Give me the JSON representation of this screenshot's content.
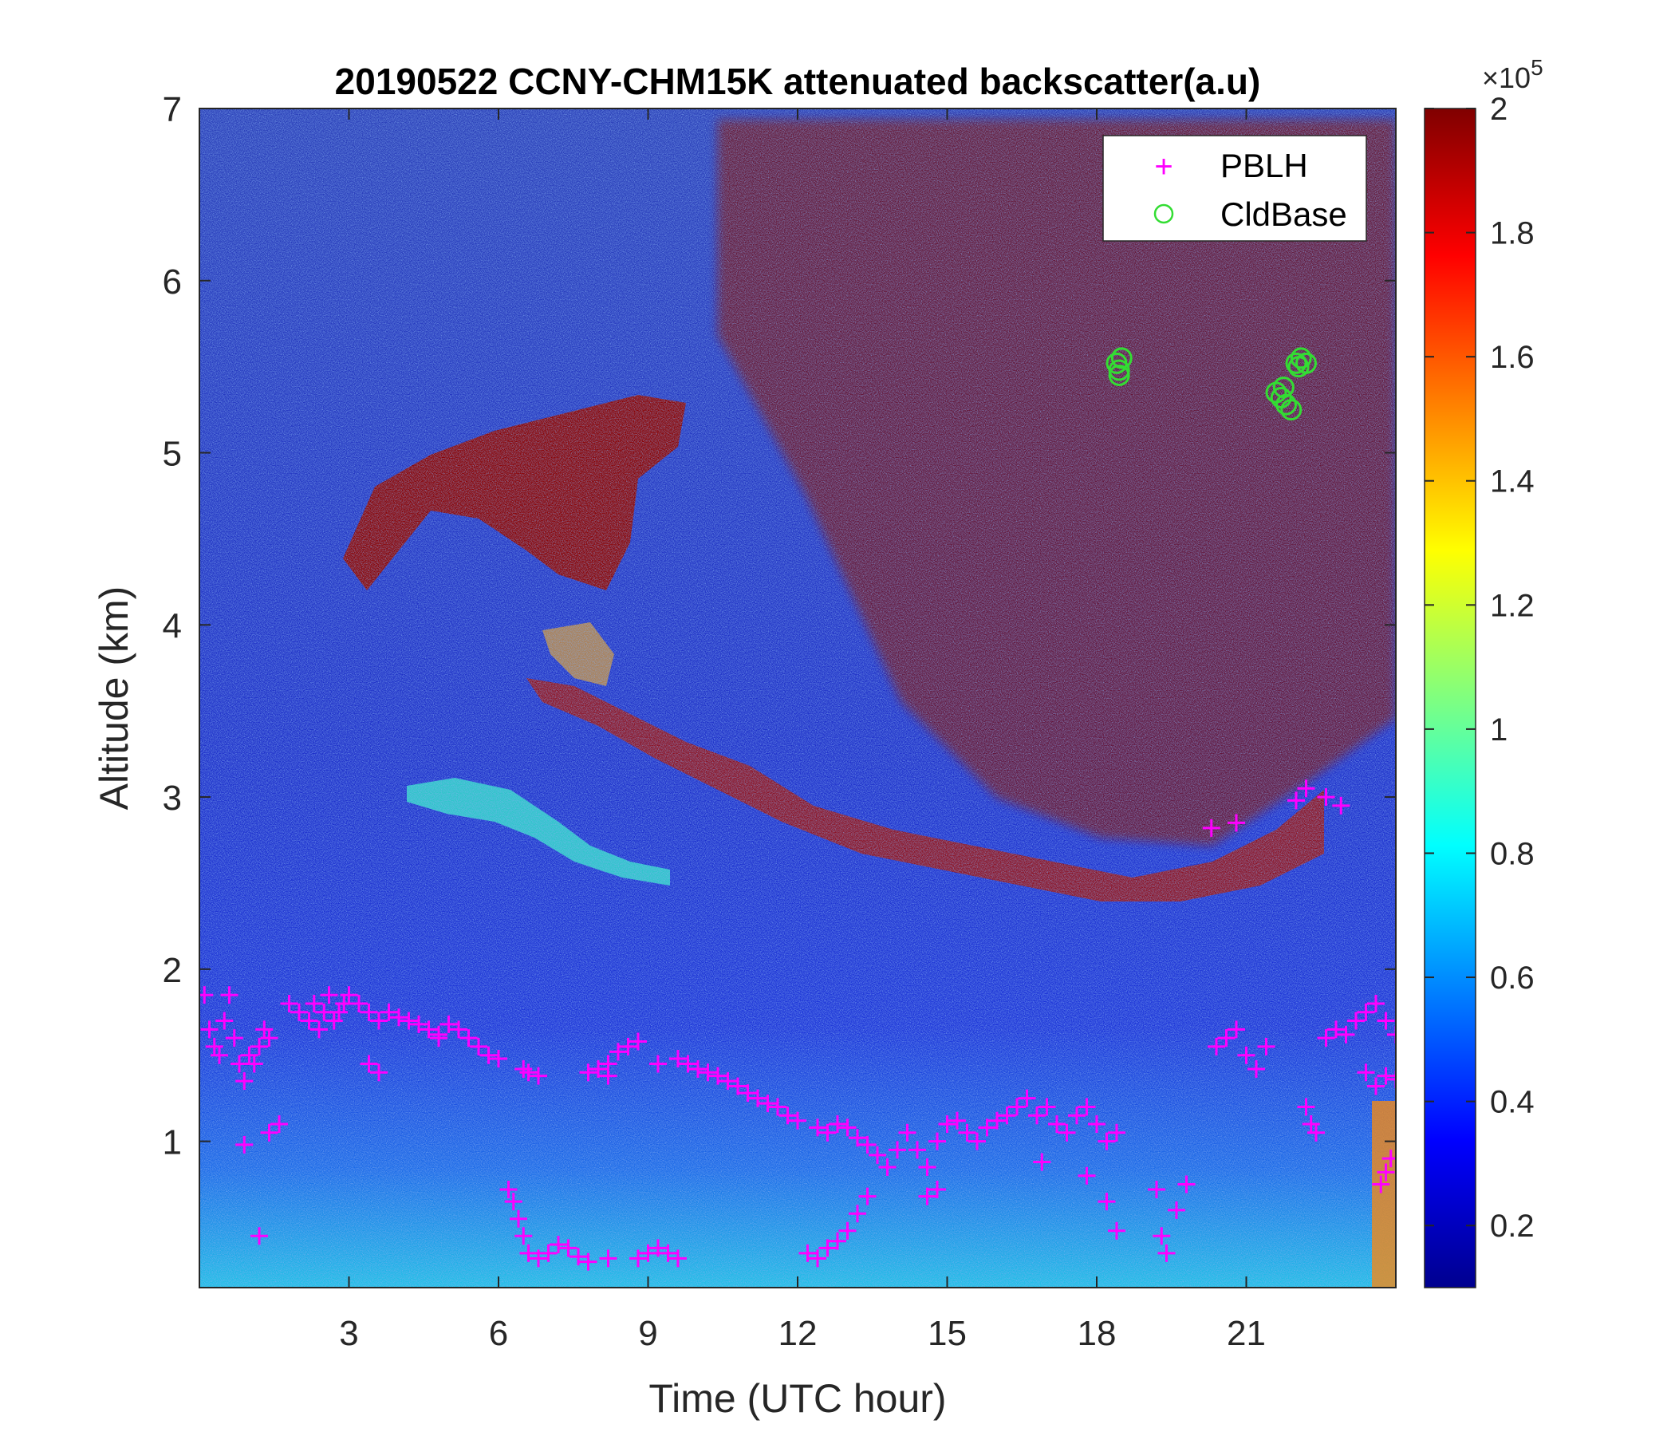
{
  "chart_data": {
    "type": "heatmap",
    "title": "20190522 CCNY-CHM15K attenuated backscatter(a.u)",
    "xlabel": "Time (UTC hour)",
    "ylabel": "Altitude (km)",
    "xlim": [
      0,
      24
    ],
    "ylim": [
      0.15,
      7
    ],
    "xticks": [
      "3",
      "6",
      "9",
      "12",
      "15",
      "18",
      "21"
    ],
    "yticks": [
      "1",
      "2",
      "3",
      "4",
      "5",
      "6",
      "7"
    ],
    "colorbar": {
      "range": [
        0.1,
        2.0
      ],
      "exponent_label": "×10",
      "exponent": "5",
      "ticks": [
        "0.2",
        "0.4",
        "0.6",
        "0.8",
        "1",
        "1.2",
        "1.4",
        "1.6",
        "1.8",
        "2"
      ],
      "colormap": "jet"
    },
    "legend": {
      "placement": "top-right",
      "entries": [
        {
          "label": "PBLH",
          "marker": "plus",
          "color": "#ff00ff"
        },
        {
          "label": "CldBase",
          "marker": "circle",
          "color": "#33dd33"
        }
      ]
    },
    "series": [
      {
        "name": "PBLH",
        "marker": "plus",
        "color": "#ff00ff",
        "points": [
          [
            0.1,
            1.85
          ],
          [
            0.2,
            1.65
          ],
          [
            0.3,
            1.55
          ],
          [
            0.4,
            1.5
          ],
          [
            0.5,
            1.7
          ],
          [
            0.6,
            1.85
          ],
          [
            0.7,
            1.6
          ],
          [
            0.8,
            1.45
          ],
          [
            0.9,
            1.35
          ],
          [
            1.0,
            1.5
          ],
          [
            1.1,
            1.45
          ],
          [
            1.2,
            1.55
          ],
          [
            1.3,
            1.65
          ],
          [
            1.4,
            1.6
          ],
          [
            0.9,
            0.98
          ],
          [
            1.2,
            0.45
          ],
          [
            1.4,
            1.05
          ],
          [
            1.6,
            1.1
          ],
          [
            1.8,
            1.8
          ],
          [
            2.0,
            1.75
          ],
          [
            2.2,
            1.7
          ],
          [
            2.3,
            1.8
          ],
          [
            2.4,
            1.65
          ],
          [
            2.5,
            1.75
          ],
          [
            2.6,
            1.85
          ],
          [
            2.7,
            1.7
          ],
          [
            2.8,
            1.75
          ],
          [
            2.9,
            1.8
          ],
          [
            3.0,
            1.85
          ],
          [
            3.2,
            1.8
          ],
          [
            3.4,
            1.75
          ],
          [
            3.6,
            1.7
          ],
          [
            3.8,
            1.75
          ],
          [
            4.0,
            1.72
          ],
          [
            4.2,
            1.7
          ],
          [
            4.4,
            1.68
          ],
          [
            4.6,
            1.65
          ],
          [
            4.8,
            1.62
          ],
          [
            5.0,
            1.68
          ],
          [
            5.2,
            1.65
          ],
          [
            5.4,
            1.6
          ],
          [
            5.6,
            1.55
          ],
          [
            5.8,
            1.5
          ],
          [
            6.0,
            1.48
          ],
          [
            3.4,
            1.45
          ],
          [
            3.6,
            1.4
          ],
          [
            4.8,
            1.6
          ],
          [
            6.5,
            1.42
          ],
          [
            6.6,
            1.4
          ],
          [
            6.8,
            1.38
          ],
          [
            6.2,
            0.72
          ],
          [
            6.3,
            0.65
          ],
          [
            6.4,
            0.55
          ],
          [
            6.5,
            0.45
          ],
          [
            6.6,
            0.35
          ],
          [
            6.8,
            0.32
          ],
          [
            7.0,
            0.35
          ],
          [
            7.2,
            0.4
          ],
          [
            7.4,
            0.38
          ],
          [
            7.6,
            0.33
          ],
          [
            7.8,
            0.3
          ],
          [
            8.2,
            0.32
          ],
          [
            8.8,
            0.32
          ],
          [
            9.0,
            0.35
          ],
          [
            9.2,
            0.38
          ],
          [
            9.4,
            0.35
          ],
          [
            9.6,
            0.32
          ],
          [
            7.8,
            1.4
          ],
          [
            8.0,
            1.42
          ],
          [
            8.2,
            1.45
          ],
          [
            8.4,
            1.52
          ],
          [
            8.6,
            1.55
          ],
          [
            8.8,
            1.58
          ],
          [
            8.2,
            1.38
          ],
          [
            9.2,
            1.45
          ],
          [
            9.6,
            1.48
          ],
          [
            9.8,
            1.45
          ],
          [
            10.0,
            1.42
          ],
          [
            10.2,
            1.4
          ],
          [
            10.4,
            1.38
          ],
          [
            10.6,
            1.35
          ],
          [
            10.8,
            1.32
          ],
          [
            11.0,
            1.28
          ],
          [
            11.2,
            1.25
          ],
          [
            11.4,
            1.22
          ],
          [
            11.6,
            1.2
          ],
          [
            11.8,
            1.15
          ],
          [
            12.0,
            1.12
          ],
          [
            12.2,
            0.35
          ],
          [
            12.4,
            0.32
          ],
          [
            12.6,
            0.38
          ],
          [
            12.8,
            0.42
          ],
          [
            13.0,
            0.48
          ],
          [
            13.2,
            0.58
          ],
          [
            13.4,
            0.68
          ],
          [
            12.4,
            1.08
          ],
          [
            12.6,
            1.05
          ],
          [
            12.8,
            1.1
          ],
          [
            13.0,
            1.08
          ],
          [
            13.2,
            1.02
          ],
          [
            13.4,
            0.98
          ],
          [
            13.6,
            0.92
          ],
          [
            13.8,
            0.85
          ],
          [
            14.0,
            0.95
          ],
          [
            14.2,
            1.05
          ],
          [
            14.4,
            0.95
          ],
          [
            14.6,
            0.85
          ],
          [
            14.8,
            1.0
          ],
          [
            15.0,
            1.1
          ],
          [
            15.2,
            1.12
          ],
          [
            15.4,
            1.05
          ],
          [
            15.6,
            1.0
          ],
          [
            15.8,
            1.08
          ],
          [
            16.0,
            1.12
          ],
          [
            16.2,
            1.15
          ],
          [
            16.4,
            1.2
          ],
          [
            16.6,
            1.25
          ],
          [
            16.8,
            1.15
          ],
          [
            17.0,
            1.2
          ],
          [
            17.2,
            1.1
          ],
          [
            17.4,
            1.05
          ],
          [
            17.6,
            1.15
          ],
          [
            17.8,
            1.2
          ],
          [
            18.0,
            1.1
          ],
          [
            18.2,
            1.0
          ],
          [
            18.4,
            1.05
          ],
          [
            14.6,
            0.68
          ],
          [
            14.8,
            0.72
          ],
          [
            16.9,
            0.88
          ],
          [
            17.8,
            0.8
          ],
          [
            18.2,
            0.65
          ],
          [
            18.4,
            0.48
          ],
          [
            19.2,
            0.72
          ],
          [
            19.3,
            0.45
          ],
          [
            19.4,
            0.35
          ],
          [
            19.6,
            0.6
          ],
          [
            19.8,
            0.75
          ],
          [
            20.4,
            1.55
          ],
          [
            20.6,
            1.6
          ],
          [
            20.8,
            1.65
          ],
          [
            21.0,
            1.5
          ],
          [
            21.2,
            1.42
          ],
          [
            21.4,
            1.55
          ],
          [
            22.2,
            1.2
          ],
          [
            22.3,
            1.1
          ],
          [
            22.4,
            1.05
          ],
          [
            22.6,
            1.6
          ],
          [
            22.8,
            1.65
          ],
          [
            23.0,
            1.62
          ],
          [
            23.2,
            1.7
          ],
          [
            23.4,
            1.75
          ],
          [
            23.6,
            1.8
          ],
          [
            23.8,
            1.7
          ],
          [
            24.0,
            1.62
          ],
          [
            23.4,
            1.4
          ],
          [
            23.6,
            1.32
          ],
          [
            23.8,
            1.38
          ],
          [
            24.0,
            1.36
          ],
          [
            23.9,
            0.9
          ],
          [
            23.8,
            0.82
          ],
          [
            23.7,
            0.75
          ],
          [
            20.3,
            2.82
          ],
          [
            20.8,
            2.85
          ],
          [
            22.0,
            2.98
          ],
          [
            22.2,
            3.05
          ],
          [
            22.6,
            3.0
          ],
          [
            22.9,
            2.95
          ]
        ]
      },
      {
        "name": "CldBase",
        "marker": "circle",
        "color": "#33dd33",
        "points": [
          [
            18.4,
            5.52
          ],
          [
            18.45,
            5.48
          ],
          [
            18.5,
            5.55
          ],
          [
            18.45,
            5.45
          ],
          [
            21.6,
            5.35
          ],
          [
            21.7,
            5.32
          ],
          [
            21.8,
            5.28
          ],
          [
            21.9,
            5.25
          ],
          [
            21.75,
            5.38
          ],
          [
            22.0,
            5.52
          ],
          [
            22.1,
            5.55
          ],
          [
            22.2,
            5.52
          ],
          [
            22.05,
            5.5
          ]
        ]
      }
    ]
  }
}
